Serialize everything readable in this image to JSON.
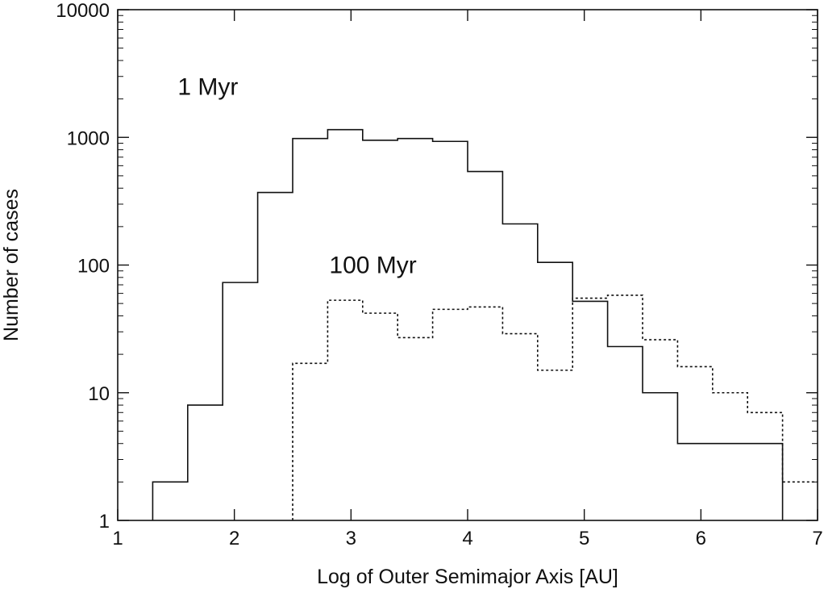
{
  "chart_data": {
    "type": "step-histogram",
    "xlabel": "Log of Outer Semimajor Axis [AU]",
    "ylabel": "Number of cases",
    "xlim": [
      1,
      7
    ],
    "ylim": [
      1,
      10000
    ],
    "yscale": "log",
    "x_ticks": [
      1,
      2,
      3,
      4,
      5,
      6,
      7
    ],
    "x_tick_labels": [
      "1",
      "2",
      "3",
      "4",
      "5",
      "6",
      "7"
    ],
    "y_ticks": [
      1,
      10,
      100,
      1000,
      10000
    ],
    "y_tick_labels": [
      "1",
      "10",
      "100",
      "1000",
      "10000"
    ],
    "grid": false,
    "annotations": [
      {
        "text": "1 Myr",
        "x": 1.5,
        "y": 2500
      },
      {
        "text": "100 Myr",
        "x": 2.8,
        "y": 100
      }
    ],
    "series": [
      {
        "label": "1 Myr",
        "line_style": "solid",
        "color": "#111111",
        "bin_edges": [
          1.3,
          1.6,
          1.9,
          2.2,
          2.5,
          2.8,
          3.1,
          3.4,
          3.7,
          4.0,
          4.3,
          4.6,
          4.9,
          5.2,
          5.5,
          5.8,
          6.1,
          6.4,
          6.7
        ],
        "values": [
          2,
          8,
          73,
          370,
          980,
          1150,
          950,
          980,
          930,
          540,
          210,
          105,
          52,
          23,
          10,
          4,
          4,
          4
        ]
      },
      {
        "label": "100 Myr",
        "line_style": "dotted",
        "color": "#111111",
        "bin_edges": [
          2.5,
          2.8,
          3.1,
          3.4,
          3.7,
          4.0,
          4.3,
          4.6,
          4.9,
          5.2,
          5.5,
          5.8,
          6.1,
          6.4,
          6.7,
          7.0
        ],
        "values": [
          17,
          53,
          42,
          27,
          45,
          47,
          29,
          15,
          55,
          58,
          26,
          16,
          10,
          7,
          2
        ]
      }
    ]
  }
}
